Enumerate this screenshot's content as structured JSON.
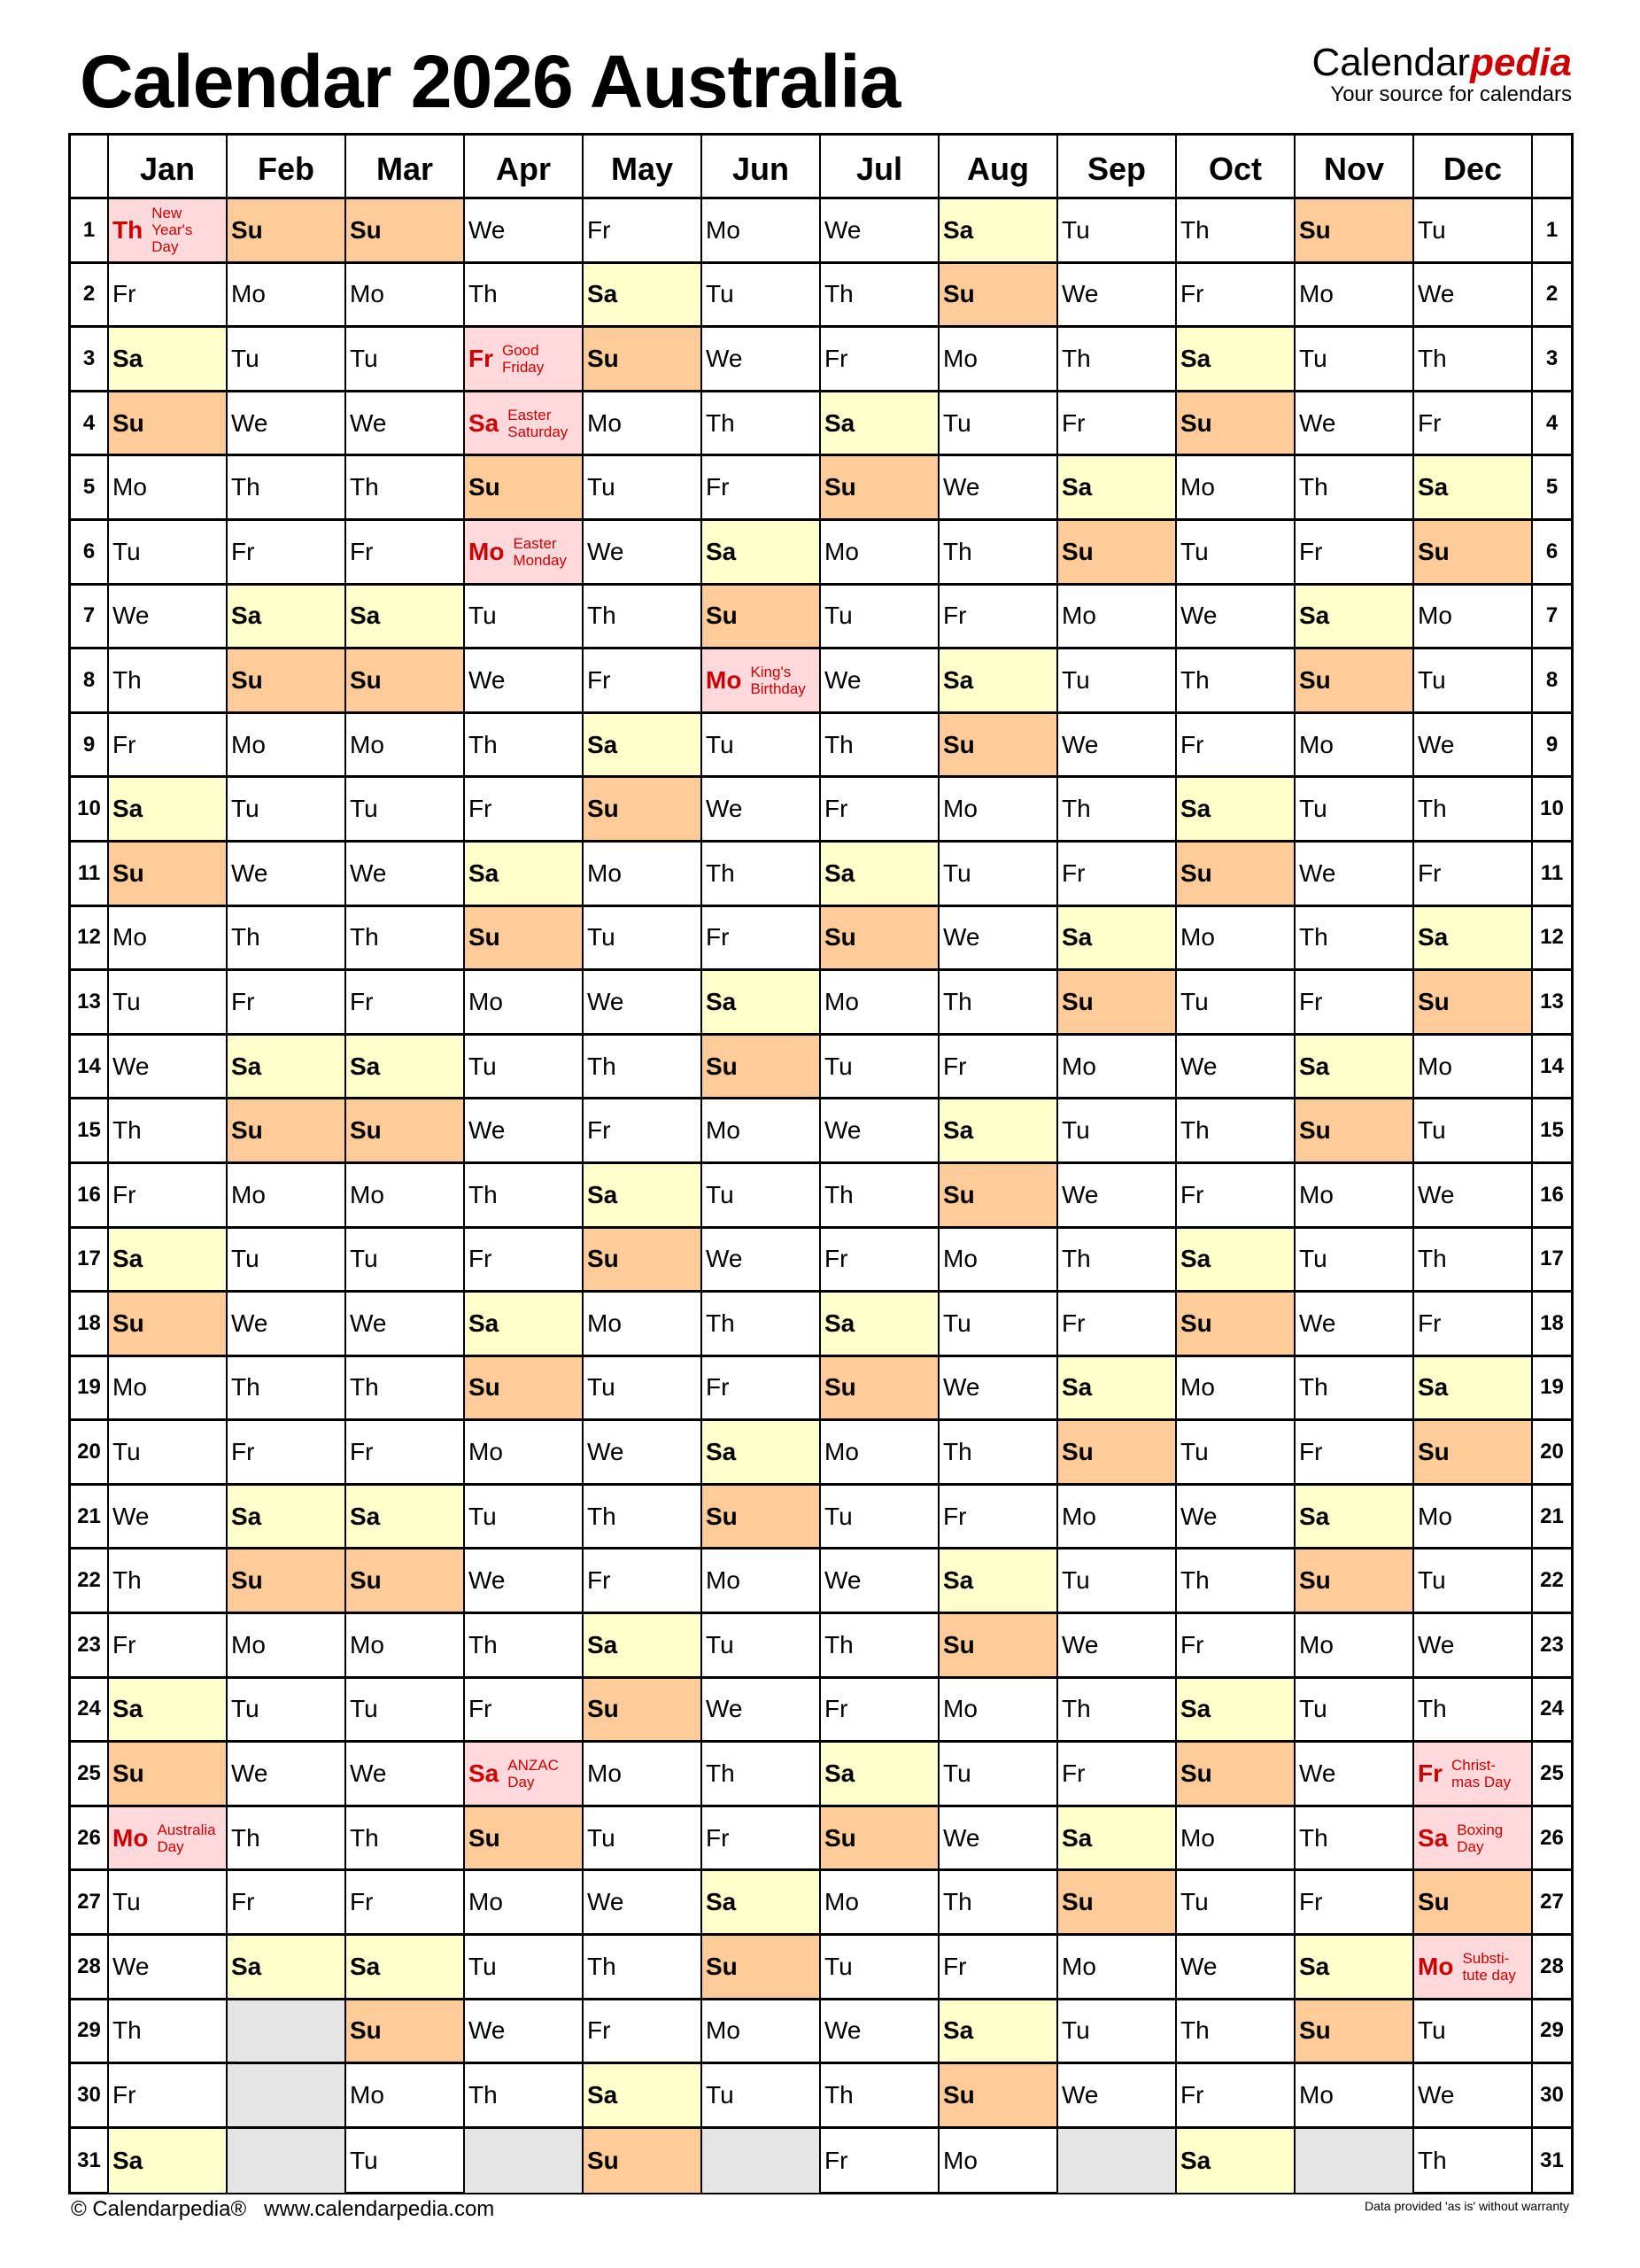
{
  "title": "Calendar 2026 Australia",
  "logo": {
    "brand_main": "Calendar",
    "brand_accent": "pedia",
    "tagline": "Your source for calendars"
  },
  "colors": {
    "saturday": "#ffffcc",
    "sunday": "#ffcc99",
    "holiday": "#ffd9dc",
    "holiday_text": "#cc0000",
    "empty": "#e5e5e5"
  },
  "months": [
    {
      "name": "Jan",
      "first": "Th",
      "days": 31
    },
    {
      "name": "Feb",
      "first": "Su",
      "days": 28
    },
    {
      "name": "Mar",
      "first": "Su",
      "days": 31
    },
    {
      "name": "Apr",
      "first": "We",
      "days": 30
    },
    {
      "name": "May",
      "first": "Fr",
      "days": 31
    },
    {
      "name": "Jun",
      "first": "Mo",
      "days": 30
    },
    {
      "name": "Jul",
      "first": "We",
      "days": 31
    },
    {
      "name": "Aug",
      "first": "Sa",
      "days": 31
    },
    {
      "name": "Sep",
      "first": "Tu",
      "days": 30
    },
    {
      "name": "Oct",
      "first": "Th",
      "days": 31
    },
    {
      "name": "Nov",
      "first": "Su",
      "days": 30
    },
    {
      "name": "Dec",
      "first": "Tu",
      "days": 31
    }
  ],
  "weekdays": [
    "Mo",
    "Tu",
    "We",
    "Th",
    "Fr",
    "Sa",
    "Su"
  ],
  "holidays": [
    {
      "month": "Jan",
      "day": 1,
      "label": "New\nYear's\nDay"
    },
    {
      "month": "Jan",
      "day": 26,
      "label": "Australia\nDay"
    },
    {
      "month": "Apr",
      "day": 3,
      "label": "Good\nFriday"
    },
    {
      "month": "Apr",
      "day": 4,
      "label": "Easter\nSaturday"
    },
    {
      "month": "Apr",
      "day": 6,
      "label": "Easter\nMonday"
    },
    {
      "month": "Apr",
      "day": 25,
      "label": "ANZAC\nDay"
    },
    {
      "month": "Jun",
      "day": 8,
      "label": "King's\nBirthday"
    },
    {
      "month": "Dec",
      "day": 25,
      "label": "Christ-\nmas Day"
    },
    {
      "month": "Dec",
      "day": 26,
      "label": "Boxing\nDay"
    },
    {
      "month": "Dec",
      "day": 28,
      "label": "Substi-\ntute day"
    }
  ],
  "footer": {
    "copyright": "© Calendarpedia®",
    "url": "www.calendarpedia.com",
    "disclaimer": "Data provided 'as is' without warranty"
  }
}
